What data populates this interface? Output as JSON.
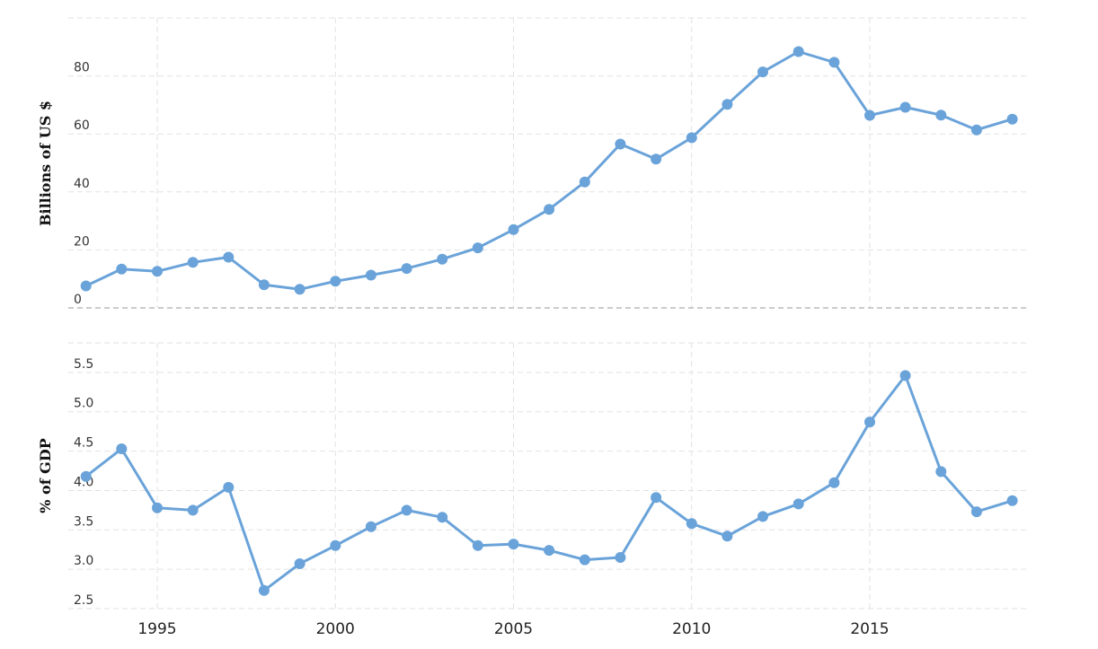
{
  "chart_data": [
    {
      "type": "line",
      "title": "",
      "xlabel": "",
      "ylabel": "Billions of US $",
      "ylim": [
        0,
        100
      ],
      "yticks": [
        0,
        20,
        40,
        60,
        80
      ],
      "grid": true,
      "color": "#6aa3d9",
      "x": [
        1993,
        1994,
        1995,
        1996,
        1997,
        1998,
        1999,
        2000,
        2001,
        2002,
        2003,
        2004,
        2005,
        2006,
        2007,
        2008,
        2009,
        2010,
        2011,
        2012,
        2013,
        2014,
        2015,
        2016,
        2017,
        2018,
        2019
      ],
      "series": [
        {
          "values": [
            7.6,
            13.4,
            12.6,
            15.7,
            17.5,
            8.0,
            6.4,
            9.2,
            11.3,
            13.6,
            16.8,
            20.7,
            27.0,
            34.0,
            43.4,
            56.5,
            51.3,
            58.7,
            70.2,
            81.4,
            88.4,
            84.7,
            66.4,
            69.2,
            66.5,
            61.4,
            65.1
          ]
        }
      ]
    },
    {
      "type": "line",
      "title": "",
      "xlabel": "",
      "ylabel": "% of GDP",
      "ylim": [
        2.5,
        5.875
      ],
      "yticks": [
        "2.5",
        "3.0",
        "3.5",
        "4.0",
        "4.5",
        "5.0",
        "5.5"
      ],
      "xticks": [
        "1995",
        "2000",
        "2005",
        "2010",
        "2015"
      ],
      "grid": true,
      "color": "#6aa3d9",
      "x": [
        1993,
        1994,
        1995,
        1996,
        1997,
        1998,
        1999,
        2000,
        2001,
        2002,
        2003,
        2004,
        2005,
        2006,
        2007,
        2008,
        2009,
        2010,
        2011,
        2012,
        2013,
        2014,
        2015,
        2016,
        2017,
        2018,
        2019
      ],
      "series": [
        {
          "values": [
            4.18,
            4.53,
            3.78,
            3.75,
            4.04,
            2.73,
            3.07,
            3.3,
            3.54,
            3.75,
            3.66,
            3.3,
            3.32,
            3.24,
            3.12,
            3.15,
            3.91,
            3.58,
            3.42,
            3.67,
            3.83,
            4.1,
            4.87,
            5.46,
            4.24,
            3.73,
            3.87
          ]
        }
      ]
    }
  ]
}
